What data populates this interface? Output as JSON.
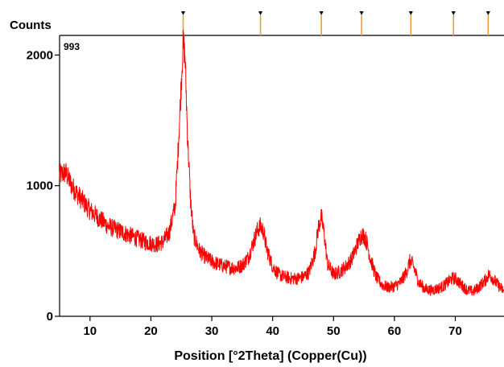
{
  "chart_data": {
    "type": "line",
    "ylabel": "Counts",
    "xlabel": "Position [°2Theta] (Copper(Cu))",
    "annotation": "993",
    "xlim": [
      5,
      78
    ],
    "ylim": [
      0,
      2150
    ],
    "x_ticks": [
      "10",
      "20",
      "30",
      "40",
      "50",
      "60",
      "70"
    ],
    "y_ticks": [
      "0",
      "1000",
      "2000"
    ],
    "series": [
      {
        "x": [
          5,
          6,
          7,
          8,
          9,
          10,
          11,
          12,
          13,
          14,
          15,
          16,
          17,
          18,
          19,
          20,
          21,
          22,
          23,
          24,
          24.5,
          25,
          25.3,
          25.6,
          26,
          26.5,
          27,
          28,
          29,
          30,
          31,
          32,
          33,
          34,
          35,
          36,
          37,
          37.5,
          38,
          38.5,
          39,
          40,
          41,
          42,
          43,
          44,
          45,
          46,
          47,
          47.5,
          48,
          48.5,
          49,
          50,
          51,
          52,
          53,
          54,
          54.5,
          55,
          55.5,
          56,
          57,
          58,
          59,
          60,
          61,
          62,
          62.5,
          63,
          64,
          65,
          66,
          67,
          68,
          69,
          69.5,
          70,
          71,
          72,
          73,
          74,
          75,
          75.5,
          76,
          77,
          78
        ],
        "y": [
          1080,
          1100,
          1000,
          930,
          870,
          810,
          770,
          730,
          690,
          670,
          650,
          630,
          610,
          590,
          570,
          560,
          550,
          570,
          640,
          850,
          1300,
          1800,
          2100,
          2000,
          1400,
          900,
          620,
          500,
          450,
          420,
          400,
          385,
          375,
          370,
          390,
          450,
          590,
          660,
          690,
          650,
          520,
          380,
          320,
          300,
          290,
          290,
          300,
          340,
          500,
          680,
          760,
          620,
          400,
          320,
          340,
          380,
          440,
          560,
          620,
          620,
          560,
          450,
          300,
          240,
          220,
          230,
          260,
          340,
          420,
          400,
          260,
          210,
          200,
          210,
          230,
          270,
          290,
          290,
          240,
          200,
          190,
          230,
          280,
          320,
          300,
          240,
          190
        ]
      }
    ],
    "reference_peaks": [
      25.3,
      38.0,
      48.0,
      54.6,
      62.7,
      69.7,
      75.4
    ],
    "colors": {
      "series": "#ff0000",
      "reference_peaks": "#f0a030",
      "axis": "#000000"
    }
  }
}
